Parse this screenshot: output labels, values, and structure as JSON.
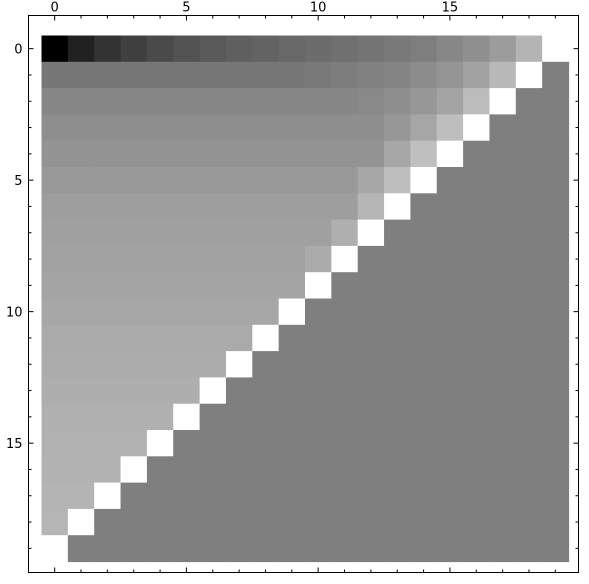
{
  "chart_data": {
    "type": "heatmap",
    "title": "",
    "xlabel": "",
    "ylabel": "",
    "rows": 20,
    "cols": 20,
    "colormap": "gray",
    "xlim": [
      -0.5,
      19.5
    ],
    "ylim": [
      19.5,
      -0.5
    ],
    "xticks": [
      0,
      5,
      10,
      15
    ],
    "yticks": [
      0,
      5,
      10,
      15
    ],
    "xtick_labels": [
      "0",
      "5",
      "10",
      "15"
    ],
    "ytick_labels": [
      "0",
      "5",
      "10",
      "15"
    ],
    "xaxis_position": "top",
    "grid": false,
    "colors": {
      "background": "#ffffff",
      "frame": "#000000",
      "filled_region": "#7f7f7f"
    },
    "values": [
      [
        0,
        33,
        51,
        64,
        74,
        82,
        89,
        95,
        99,
        104,
        108,
        112,
        116,
        121,
        126,
        135,
        143,
        156,
        180,
        255
      ],
      [
        119,
        119,
        119,
        119,
        119,
        119,
        119,
        119,
        119,
        119,
        121,
        125,
        129,
        132,
        140,
        149,
        162,
        184,
        255,
        255
      ],
      [
        134,
        134,
        134,
        134,
        134,
        134,
        134,
        134,
        134,
        134,
        134,
        134,
        137,
        142,
        151,
        164,
        188,
        255,
        255,
        255
      ],
      [
        142,
        142,
        142,
        142,
        142,
        142,
        142,
        142,
        142,
        142,
        142,
        142,
        142,
        151,
        166,
        190,
        255,
        255,
        255,
        255
      ],
      [
        147,
        147,
        147,
        147,
        147,
        147,
        147,
        147,
        147,
        147,
        147,
        147,
        147,
        167,
        191,
        255,
        255,
        255,
        255,
        255
      ],
      [
        153,
        153,
        153,
        153,
        153,
        153,
        153,
        153,
        153,
        153,
        153,
        153,
        167,
        190,
        255,
        255,
        255,
        255,
        255,
        255
      ],
      [
        158,
        158,
        158,
        158,
        158,
        158,
        158,
        158,
        158,
        158,
        158,
        158,
        181,
        255,
        255,
        255,
        255,
        255,
        255,
        255
      ],
      [
        160,
        160,
        160,
        160,
        160,
        160,
        160,
        160,
        160,
        160,
        160,
        175,
        255,
        255,
        255,
        255,
        255,
        255,
        255,
        255
      ],
      [
        162,
        162,
        162,
        162,
        162,
        162,
        162,
        162,
        162,
        162,
        171,
        255,
        255,
        255,
        255,
        255,
        255,
        255,
        255,
        255
      ],
      [
        164,
        164,
        164,
        164,
        164,
        164,
        164,
        164,
        164,
        164,
        255,
        255,
        255,
        255,
        255,
        255,
        255,
        255,
        255,
        255
      ],
      [
        166,
        166,
        166,
        166,
        166,
        166,
        166,
        166,
        166,
        255,
        255,
        255,
        255,
        255,
        255,
        255,
        255,
        255,
        255,
        255
      ],
      [
        170,
        170,
        170,
        170,
        170,
        170,
        170,
        170,
        255,
        255,
        255,
        255,
        255,
        255,
        255,
        255,
        255,
        255,
        255,
        255
      ],
      [
        172,
        172,
        172,
        172,
        172,
        172,
        172,
        255,
        255,
        255,
        255,
        255,
        255,
        255,
        255,
        255,
        255,
        255,
        255,
        255
      ],
      [
        174,
        174,
        174,
        174,
        174,
        174,
        255,
        255,
        255,
        255,
        255,
        255,
        255,
        255,
        255,
        255,
        255,
        255,
        255,
        255
      ],
      [
        176,
        176,
        176,
        176,
        176,
        255,
        255,
        255,
        255,
        255,
        255,
        255,
        255,
        255,
        255,
        255,
        255,
        255,
        255,
        255
      ],
      [
        177,
        177,
        177,
        177,
        255,
        255,
        255,
        255,
        255,
        255,
        255,
        255,
        255,
        255,
        255,
        255,
        255,
        255,
        255,
        255
      ],
      [
        178,
        178,
        178,
        255,
        255,
        255,
        255,
        255,
        255,
        255,
        255,
        255,
        255,
        255,
        255,
        255,
        255,
        255,
        255,
        255
      ],
      [
        180,
        180,
        255,
        255,
        255,
        255,
        255,
        255,
        255,
        255,
        255,
        255,
        255,
        255,
        255,
        255,
        255,
        255,
        255,
        255
      ],
      [
        181,
        255,
        255,
        255,
        255,
        255,
        255,
        255,
        255,
        255,
        255,
        255,
        255,
        255,
        255,
        255,
        255,
        255,
        255,
        255
      ],
      [
        255,
        255,
        255,
        255,
        255,
        255,
        255,
        255,
        255,
        255,
        255,
        255,
        255,
        255,
        255,
        255,
        255,
        255,
        255,
        255
      ]
    ]
  }
}
